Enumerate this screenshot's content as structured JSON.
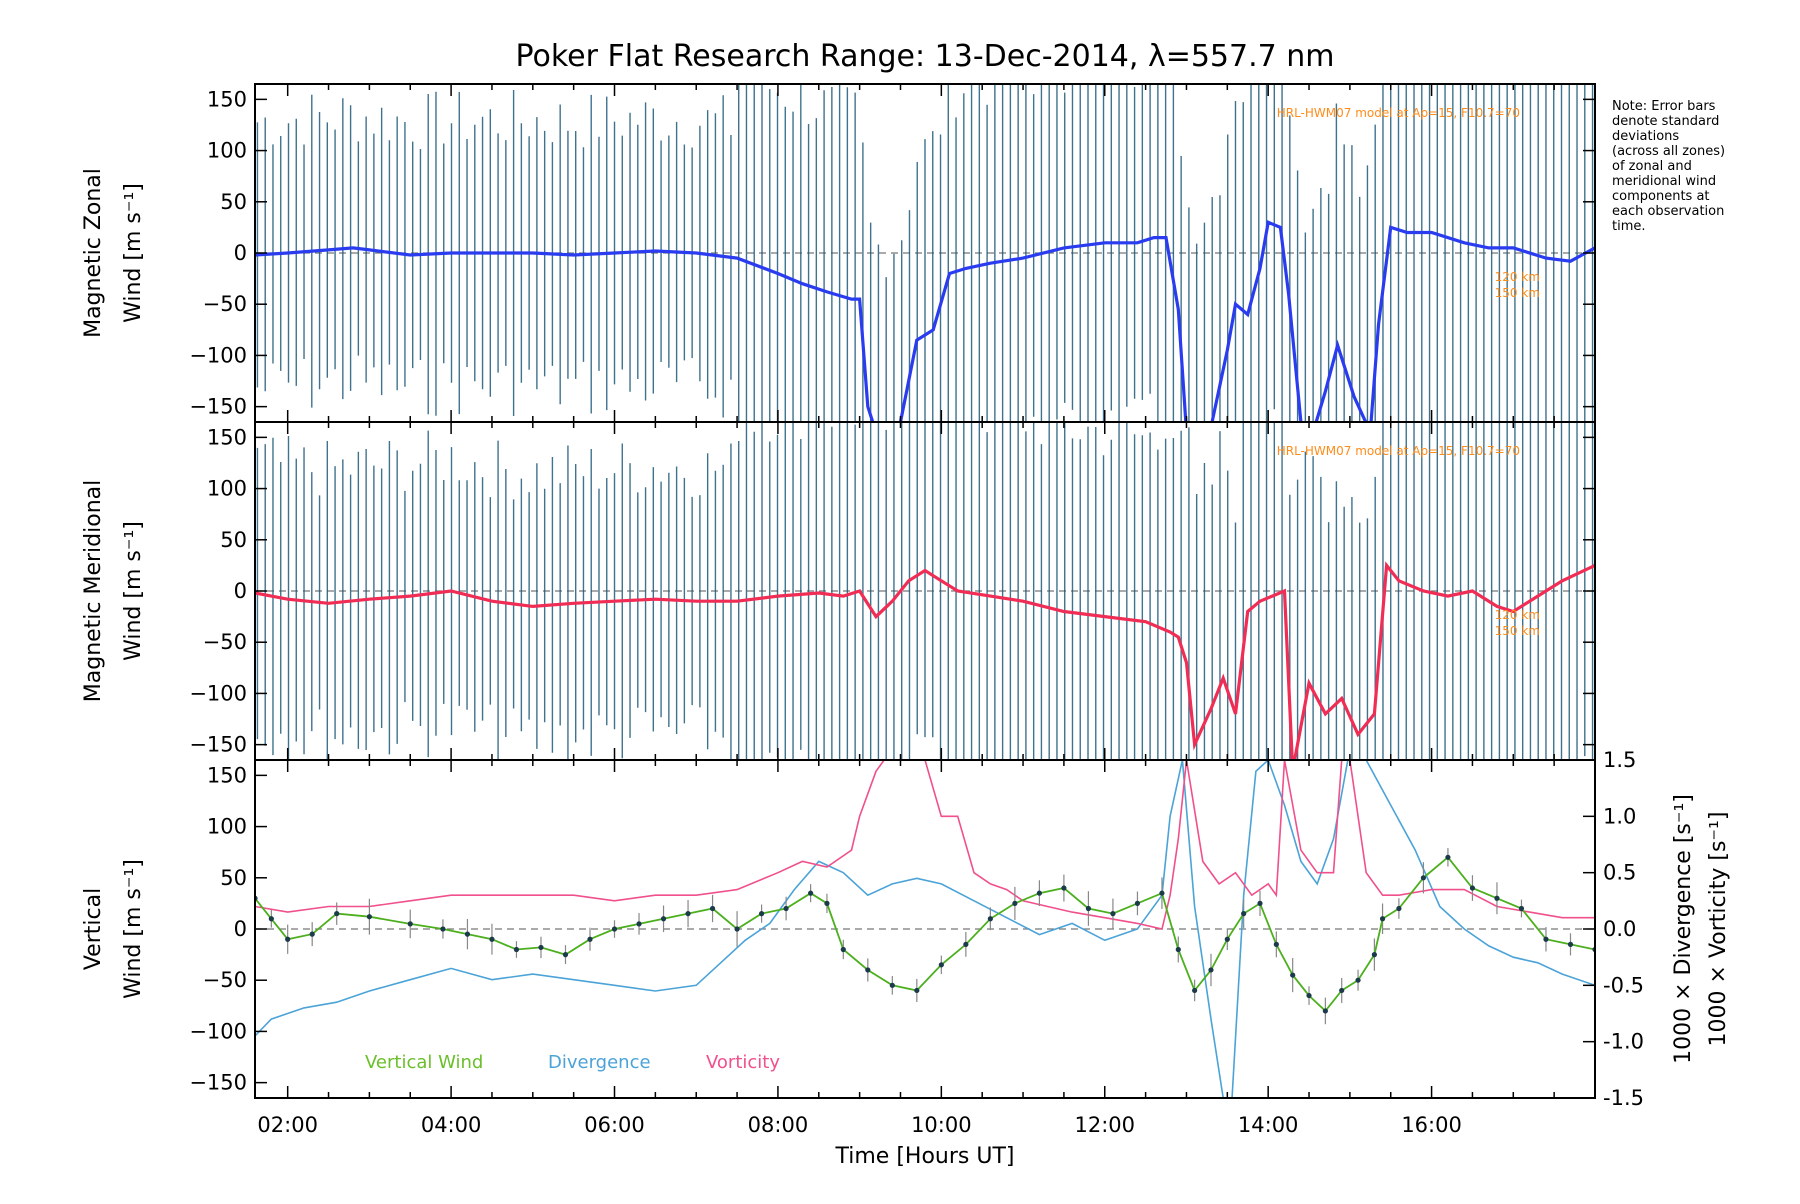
{
  "chart_data": {
    "type": "line",
    "title": "Poker Flat Research Range: 13-Dec-2014, λ=557.7 nm",
    "xlabel": "Time [Hours UT]",
    "x_ticks": [
      "02:00",
      "04:00",
      "06:00",
      "08:00",
      "10:00",
      "12:00",
      "14:00",
      "16:00"
    ],
    "x_range_hours": [
      1.6,
      18.0
    ],
    "note": [
      "Note: Error bars",
      "denote standard",
      "deviations",
      "(across all zones)",
      "of zonal and",
      "meridional wind",
      "components at",
      "each observation",
      "time."
    ],
    "colors": {
      "zonal": "#2a3cf0",
      "meridional": "#f02d55",
      "vertical": "#4caf1e",
      "divergence": "#4ba3d8",
      "vorticity": "#f0508c",
      "errorbar": "#1e5a7a",
      "model": "#ff8c1a",
      "label_vertical": "#6bbf2a",
      "label_divergence": "#4ba3d8",
      "label_vorticity": "#f0508c"
    },
    "panels": [
      {
        "name": "zonal",
        "ylabel_lines": [
          "Magnetic Zonal",
          "Wind [m s⁻¹]"
        ],
        "ylim": [
          -165,
          165
        ],
        "y_ticks": [
          150,
          100,
          50,
          0,
          -50,
          -100,
          -150
        ],
        "model_label": "HRL-HWM07 model at Ap=15, F10.7=70",
        "model_alt_labels": [
          "120 km",
          "150 km"
        ],
        "series": [
          {
            "x": [
              1.6,
              2.0,
              2.5,
              2.8,
              3.0,
              3.5,
              4.0,
              4.5,
              5.0,
              5.5,
              6.0,
              6.5,
              7.0,
              7.5,
              8.0,
              8.3,
              8.6,
              8.9,
              9.0,
              9.1,
              9.2,
              9.35,
              9.5,
              9.7,
              9.9,
              10.1,
              10.3,
              10.6,
              11.0,
              11.5,
              12.0,
              12.4,
              12.6,
              12.75,
              12.9,
              13.0,
              13.15,
              13.3,
              13.5,
              13.6,
              13.75,
              13.9,
              14.0,
              14.15,
              14.25,
              14.4,
              14.55,
              14.7,
              14.85,
              15.05,
              15.25,
              15.35,
              15.5,
              15.7,
              16.0,
              16.4,
              16.7,
              17.0,
              17.4,
              17.7,
              18.0
            ],
            "y": [
              -2,
              0,
              3,
              5,
              3,
              -2,
              0,
              0,
              0,
              -2,
              0,
              2,
              0,
              -5,
              -20,
              -30,
              -38,
              -45,
              -45,
              -150,
              -175,
              -175,
              -165,
              -85,
              -75,
              -20,
              -15,
              -10,
              -5,
              5,
              10,
              10,
              15,
              15,
              -55,
              -175,
              -175,
              -170,
              -95,
              -50,
              -60,
              -15,
              30,
              25,
              -40,
              -165,
              -175,
              -135,
              -90,
              -140,
              -175,
              -70,
              25,
              20,
              20,
              10,
              5,
              5,
              -5,
              -8,
              5
            ]
          }
        ]
      },
      {
        "name": "meridional",
        "ylabel_lines": [
          "Magnetic Meridional",
          "Wind [m s⁻¹]"
        ],
        "ylim": [
          -165,
          165
        ],
        "y_ticks": [
          150,
          100,
          50,
          0,
          -50,
          -100,
          -150
        ],
        "model_label": "HRL-HWM07 model at Ap=15, F10.7=70",
        "model_alt_labels": [
          "120 km",
          "150 km"
        ],
        "series": [
          {
            "x": [
              1.6,
              2.0,
              2.5,
              3.0,
              3.5,
              4.0,
              4.5,
              5.0,
              5.5,
              6.0,
              6.5,
              7.0,
              7.5,
              8.0,
              8.5,
              8.8,
              9.0,
              9.2,
              9.4,
              9.6,
              9.8,
              10.0,
              10.2,
              10.6,
              11.0,
              11.5,
              12.0,
              12.5,
              12.8,
              12.9,
              13.0,
              13.1,
              13.3,
              13.45,
              13.6,
              13.75,
              13.9,
              14.05,
              14.2,
              14.3,
              14.5,
              14.7,
              14.9,
              15.1,
              15.3,
              15.45,
              15.6,
              15.9,
              16.2,
              16.5,
              16.8,
              17.0,
              17.3,
              17.6,
              18.0
            ],
            "y": [
              -2,
              -8,
              -12,
              -8,
              -5,
              0,
              -10,
              -15,
              -12,
              -10,
              -8,
              -10,
              -10,
              -5,
              -2,
              -5,
              0,
              -25,
              -10,
              10,
              20,
              10,
              0,
              -5,
              -10,
              -20,
              -25,
              -30,
              -40,
              -45,
              -70,
              -150,
              -115,
              -85,
              -120,
              -20,
              -10,
              -5,
              0,
              -175,
              -90,
              -120,
              -105,
              -140,
              -120,
              25,
              10,
              0,
              -5,
              0,
              -15,
              -20,
              -5,
              10,
              25
            ]
          }
        ]
      },
      {
        "name": "vertical",
        "ylabel_lines": [
          "Vertical",
          "Wind [m s⁻¹]"
        ],
        "ylim": [
          -165,
          165
        ],
        "y_ticks": [
          150,
          100,
          50,
          0,
          -50,
          -100,
          -150
        ],
        "right_axis": {
          "ylim": [
            -1.5,
            1.5
          ],
          "y_ticks": [
            "1.5",
            "1.0",
            "0.5",
            "0.0",
            "-0.5",
            "-1.0",
            "-1.5"
          ],
          "labels": [
            "1000 × Divergence [s⁻¹]",
            "1000 × Vorticity [s⁻¹]"
          ]
        },
        "legend": [
          "Vertical Wind",
          "Divergence",
          "Vorticity"
        ],
        "series": [
          {
            "name": "Vertical Wind",
            "x": [
              1.6,
              1.8,
              2.0,
              2.3,
              2.6,
              3.0,
              3.5,
              3.9,
              4.2,
              4.5,
              4.8,
              5.1,
              5.4,
              5.7,
              6.0,
              6.3,
              6.6,
              6.9,
              7.2,
              7.5,
              7.8,
              8.1,
              8.4,
              8.6,
              8.8,
              9.1,
              9.4,
              9.7,
              10.0,
              10.3,
              10.6,
              10.9,
              11.2,
              11.5,
              11.8,
              12.1,
              12.4,
              12.7,
              12.9,
              13.1,
              13.3,
              13.5,
              13.7,
              13.9,
              14.1,
              14.3,
              14.5,
              14.7,
              14.9,
              15.1,
              15.3,
              15.4,
              15.6,
              15.9,
              16.2,
              16.5,
              16.8,
              17.1,
              17.4,
              17.7,
              18.0
            ],
            "y": [
              30,
              10,
              -10,
              -5,
              15,
              12,
              5,
              0,
              -5,
              -10,
              -20,
              -18,
              -25,
              -10,
              0,
              5,
              10,
              15,
              20,
              0,
              15,
              20,
              35,
              25,
              -20,
              -40,
              -55,
              -60,
              -35,
              -15,
              10,
              25,
              35,
              40,
              20,
              15,
              25,
              35,
              -20,
              -60,
              -40,
              -10,
              15,
              25,
              -15,
              -45,
              -65,
              -80,
              -60,
              -50,
              -25,
              10,
              20,
              50,
              70,
              40,
              30,
              20,
              -10,
              -15,
              -20
            ]
          },
          {
            "name": "Divergence",
            "axis": "right",
            "x": [
              1.6,
              1.8,
              2.2,
              2.6,
              3.0,
              3.5,
              4.0,
              4.5,
              5.0,
              5.5,
              6.0,
              6.5,
              7.0,
              7.3,
              7.6,
              7.9,
              8.2,
              8.5,
              8.8,
              9.1,
              9.4,
              9.7,
              10.0,
              10.4,
              10.8,
              11.2,
              11.6,
              12.0,
              12.4,
              12.7,
              12.8,
              12.95,
              13.1,
              13.3,
              13.45,
              13.55,
              13.7,
              13.85,
              14.0,
              14.2,
              14.4,
              14.6,
              14.8,
              15.0,
              15.2,
              15.5,
              15.8,
              16.1,
              16.4,
              16.7,
              17.0,
              17.3,
              17.6,
              18.0
            ],
            "y": [
              -0.95,
              -0.8,
              -0.7,
              -0.65,
              -0.55,
              -0.45,
              -0.35,
              -0.45,
              -0.4,
              -0.45,
              -0.5,
              -0.55,
              -0.5,
              -0.3,
              -0.1,
              0.05,
              0.35,
              0.6,
              0.5,
              0.3,
              0.4,
              0.45,
              0.4,
              0.25,
              0.1,
              -0.05,
              0.05,
              -0.1,
              0.0,
              0.3,
              1.0,
              1.5,
              0.2,
              -0.8,
              -1.5,
              -1.6,
              0.3,
              1.4,
              1.5,
              1.1,
              0.6,
              0.4,
              0.8,
              1.6,
              1.5,
              1.1,
              0.7,
              0.2,
              0.0,
              -0.15,
              -0.25,
              -0.3,
              -0.4,
              -0.5
            ]
          },
          {
            "name": "Vorticity",
            "axis": "right",
            "x": [
              1.6,
              2.0,
              2.5,
              3.0,
              3.5,
              4.0,
              4.5,
              5.0,
              5.5,
              6.0,
              6.5,
              7.0,
              7.5,
              8.0,
              8.3,
              8.6,
              8.9,
              9.0,
              9.2,
              9.4,
              9.6,
              9.8,
              10.0,
              10.2,
              10.4,
              10.6,
              10.8,
              11.0,
              11.3,
              11.6,
              12.0,
              12.4,
              12.7,
              12.8,
              12.9,
              13.0,
              13.2,
              13.4,
              13.6,
              13.8,
              14.0,
              14.1,
              14.2,
              14.4,
              14.6,
              14.8,
              14.9,
              15.0,
              15.2,
              15.4,
              15.6,
              16.0,
              16.4,
              16.8,
              17.2,
              17.6,
              18.0
            ],
            "y": [
              0.2,
              0.15,
              0.2,
              0.2,
              0.25,
              0.3,
              0.3,
              0.3,
              0.3,
              0.25,
              0.3,
              0.3,
              0.35,
              0.5,
              0.6,
              0.55,
              0.7,
              1.0,
              1.4,
              1.6,
              1.6,
              1.5,
              1.0,
              1.0,
              0.5,
              0.4,
              0.35,
              0.25,
              0.2,
              0.15,
              0.1,
              0.05,
              0.0,
              0.3,
              0.8,
              1.5,
              0.6,
              0.4,
              0.5,
              0.3,
              0.4,
              0.3,
              1.5,
              0.7,
              0.5,
              0.5,
              1.5,
              1.5,
              0.5,
              0.3,
              0.3,
              0.35,
              0.35,
              0.2,
              0.15,
              0.1,
              0.1
            ]
          }
        ]
      }
    ]
  }
}
